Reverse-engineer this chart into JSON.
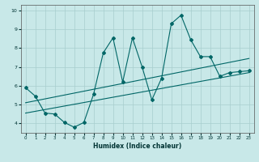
{
  "title": "",
  "xlabel": "Humidex (Indice chaleur)",
  "bg_color": "#c8e8e8",
  "line_color": "#006666",
  "grid_color": "#a8cece",
  "xlim": [
    -0.5,
    23.5
  ],
  "ylim": [
    3.5,
    10.3
  ],
  "xticks": [
    0,
    1,
    2,
    3,
    4,
    5,
    6,
    7,
    8,
    9,
    10,
    11,
    12,
    13,
    14,
    15,
    16,
    17,
    18,
    19,
    20,
    21,
    22,
    23
  ],
  "yticks": [
    4,
    5,
    6,
    7,
    8,
    9,
    10
  ],
  "line1_x": [
    0,
    1,
    2,
    3,
    4,
    5,
    6,
    7,
    8,
    9,
    10,
    11,
    12,
    13,
    14,
    15,
    16,
    17,
    18,
    19,
    20,
    21,
    22,
    23
  ],
  "line1_y": [
    5.9,
    5.45,
    4.55,
    4.5,
    4.05,
    3.8,
    4.05,
    5.55,
    7.75,
    8.55,
    6.2,
    8.55,
    7.0,
    5.25,
    6.4,
    9.3,
    9.75,
    8.45,
    7.55,
    7.55,
    6.5,
    6.7,
    6.75,
    6.8
  ],
  "line2_x": [
    0,
    23
  ],
  "line2_y": [
    5.1,
    7.45
  ],
  "line3_x": [
    0,
    23
  ],
  "line3_y": [
    4.55,
    6.7
  ],
  "spine_color": "#555555",
  "xlabel_color": "#003333",
  "tick_color": "#003333"
}
